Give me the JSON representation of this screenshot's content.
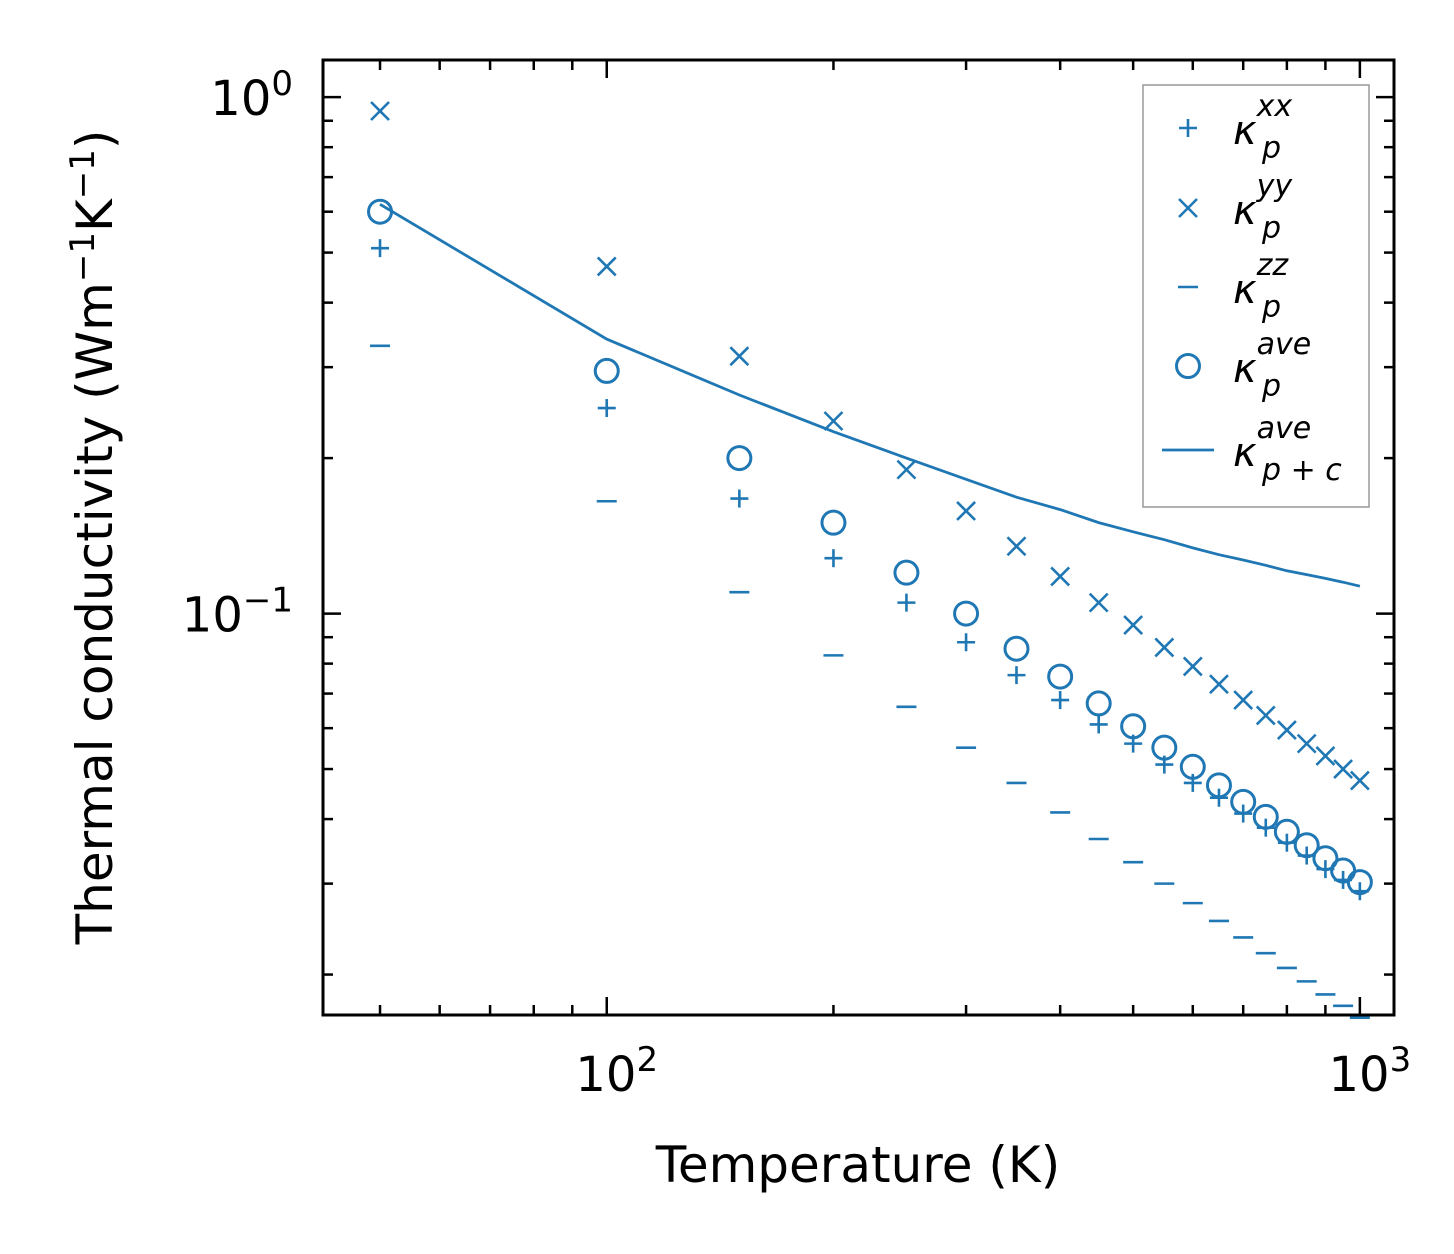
{
  "chart_data": {
    "type": "scatter",
    "xscale": "log",
    "yscale": "log",
    "xlabel": "Temperature (K)",
    "ylabel": {
      "base": "Thermal conductivity (Wm",
      "exp1": "−1",
      "mid": "K",
      "exp2": "−1",
      "end": ")"
    },
    "xlim": [
      42,
      1110
    ],
    "ylim": [
      0.0167,
      1.18
    ],
    "xticks": [
      {
        "value": 100,
        "base": "10",
        "exp": "2"
      },
      {
        "value": 1000,
        "base": "10",
        "exp": "3"
      }
    ],
    "yticks": [
      {
        "value": 1.0,
        "base": "10",
        "exp": "0"
      },
      {
        "value": 0.1,
        "base": "10",
        "exp": "−1"
      }
    ],
    "color": "#1f77b4",
    "x": [
      50,
      100,
      150,
      200,
      250,
      300,
      350,
      400,
      450,
      500,
      550,
      600,
      650,
      700,
      750,
      800,
      850,
      900,
      950,
      1000
    ],
    "series": [
      {
        "key": "xx",
        "name": "κ_p^xx",
        "sym": "κ",
        "sub": "p",
        "sup": "xx",
        "marker": "plus",
        "values": [
          0.51,
          0.25,
          0.167,
          0.128,
          0.105,
          0.088,
          0.076,
          0.068,
          0.061,
          0.056,
          0.051,
          0.047,
          0.044,
          0.041,
          0.0385,
          0.036,
          0.034,
          0.032,
          0.0305,
          0.029
        ]
      },
      {
        "key": "yy",
        "name": "κ_p^yy",
        "sym": "κ",
        "sub": "p",
        "sup": "yy",
        "marker": "x",
        "values": [
          0.94,
          0.47,
          0.315,
          0.236,
          0.19,
          0.158,
          0.135,
          0.118,
          0.105,
          0.095,
          0.086,
          0.079,
          0.073,
          0.068,
          0.0635,
          0.0595,
          0.056,
          0.053,
          0.05,
          0.0475
        ]
      },
      {
        "key": "zz",
        "name": "κ_p^zz",
        "sym": "κ",
        "sub": "p",
        "sup": "zz",
        "marker": "dash",
        "values": [
          0.33,
          0.165,
          0.11,
          0.083,
          0.066,
          0.055,
          0.047,
          0.0412,
          0.0366,
          0.033,
          0.03,
          0.0275,
          0.0254,
          0.0236,
          0.022,
          0.0206,
          0.0194,
          0.0183,
          0.0174,
          0.0165
        ]
      },
      {
        "key": "ave",
        "name": "κ_p^ave",
        "sym": "κ",
        "sub": "p",
        "sup": "ave",
        "marker": "circle",
        "values": [
          0.6,
          0.295,
          0.2,
          0.15,
          0.12,
          0.1,
          0.0855,
          0.0755,
          0.067,
          0.0605,
          0.055,
          0.0505,
          0.0465,
          0.0432,
          0.0404,
          0.0378,
          0.0356,
          0.0336,
          0.0318,
          0.0302
        ]
      },
      {
        "key": "ave_c",
        "name": "κ_p+c^ave",
        "sym": "κ",
        "sub": "p + c",
        "sup": "ave",
        "marker": "line",
        "values": [
          0.62,
          0.34,
          0.265,
          0.225,
          0.2,
          0.182,
          0.168,
          0.159,
          0.15,
          0.144,
          0.139,
          0.134,
          0.13,
          0.127,
          0.124,
          0.121,
          0.119,
          0.117,
          0.115,
          0.113
        ]
      }
    ],
    "legend_position": "top-right"
  }
}
